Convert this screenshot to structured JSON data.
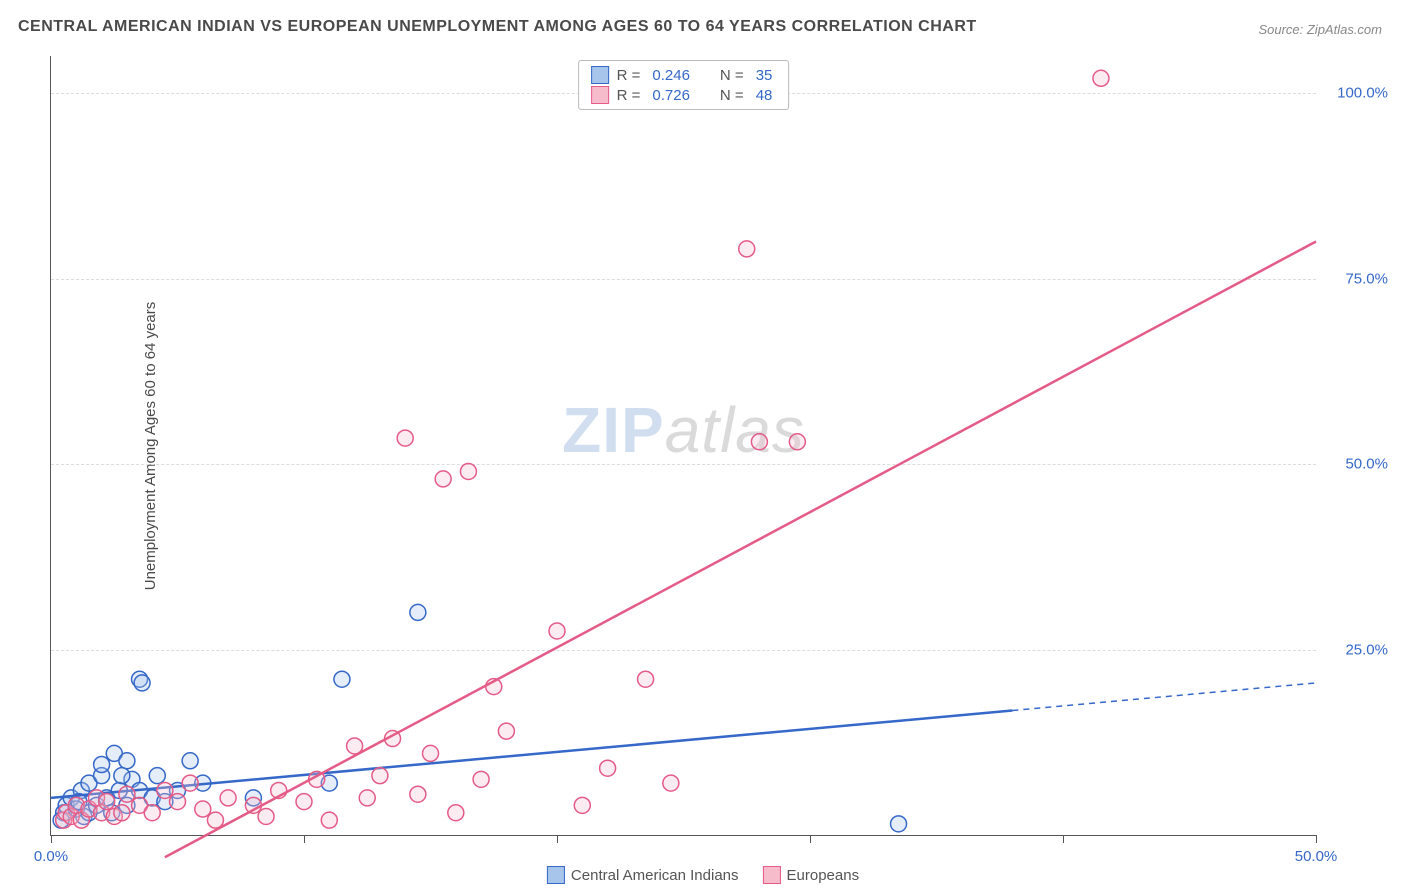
{
  "title": "CENTRAL AMERICAN INDIAN VS EUROPEAN UNEMPLOYMENT AMONG AGES 60 TO 64 YEARS CORRELATION CHART",
  "source_label": "Source: ",
  "source_name": "ZipAtlas.com",
  "y_axis_label": "Unemployment Among Ages 60 to 64 years",
  "watermark_zip": "ZIP",
  "watermark_atlas": "atlas",
  "chart": {
    "type": "scatter",
    "xlim": [
      0,
      50
    ],
    "ylim": [
      0,
      105
    ],
    "background_color": "#ffffff",
    "grid_color": "#dcdcdc",
    "grid_dash": true,
    "axis_color": "#555555",
    "xtick_positions": [
      0,
      10,
      20,
      30,
      40,
      50
    ],
    "xtick_labels_shown": {
      "0": "0.0%",
      "50": "50.0%"
    },
    "ytick_positions": [
      25,
      50,
      75,
      100
    ],
    "ytick_labels": {
      "25": "25.0%",
      "50": "50.0%",
      "75": "75.0%",
      "100": "100.0%"
    },
    "tick_label_color": "#3568c8",
    "tick_label_fontsize": 15,
    "marker_radius": 8,
    "marker_stroke_width": 1.5,
    "marker_fill_opacity": 0.3,
    "series": [
      {
        "id": "cai",
        "name": "Central American Indians",
        "color_stroke": "#3568c8",
        "color_fill": "#a7c4ea",
        "R_label": "R = ",
        "R": "0.246",
        "N_label": "N = ",
        "N": "35",
        "trend_line": {
          "x1": 0,
          "y1": 5,
          "x2": 50,
          "y2": 20.5,
          "solid_until_x": 38,
          "stroke_width": 2.5
        },
        "points": [
          [
            0.5,
            3
          ],
          [
            0.6,
            4
          ],
          [
            0.8,
            5
          ],
          [
            1.0,
            3.5
          ],
          [
            1.2,
            6
          ],
          [
            1.3,
            2.5
          ],
          [
            1.5,
            7
          ],
          [
            1.5,
            3
          ],
          [
            1.8,
            4
          ],
          [
            2.0,
            8
          ],
          [
            2.0,
            9.5
          ],
          [
            2.2,
            5
          ],
          [
            2.4,
            3
          ],
          [
            2.5,
            11
          ],
          [
            2.7,
            6
          ],
          [
            3.0,
            4
          ],
          [
            3.0,
            10
          ],
          [
            3.2,
            7.5
          ],
          [
            3.5,
            21
          ],
          [
            3.5,
            6
          ],
          [
            3.6,
            20.5
          ],
          [
            4.0,
            5
          ],
          [
            4.2,
            8
          ],
          [
            4.5,
            4.5
          ],
          [
            5.0,
            6
          ],
          [
            5.5,
            10
          ],
          [
            6.0,
            7
          ],
          [
            8.0,
            5
          ],
          [
            11.0,
            7
          ],
          [
            11.5,
            21
          ],
          [
            14.5,
            30
          ],
          [
            33.5,
            1.5
          ],
          [
            2.8,
            8
          ],
          [
            1.1,
            4.5
          ],
          [
            0.4,
            2
          ]
        ]
      },
      {
        "id": "eur",
        "name": "Europeans",
        "color_stroke": "#e55b87",
        "color_fill": "#f6bccc",
        "R_label": "R = ",
        "R": "0.726",
        "N_label": "N = ",
        "N": "48",
        "trend_line": {
          "x1": 4.5,
          "y1": -3,
          "x2": 50,
          "y2": 80,
          "solid_until_x": 50,
          "stroke_width": 2.5
        },
        "points": [
          [
            0.5,
            2
          ],
          [
            0.6,
            3
          ],
          [
            0.8,
            2.5
          ],
          [
            1.0,
            4
          ],
          [
            1.2,
            2
          ],
          [
            1.5,
            3.5
          ],
          [
            1.8,
            5
          ],
          [
            2.0,
            3
          ],
          [
            2.2,
            4.5
          ],
          [
            2.5,
            2.5
          ],
          [
            2.8,
            3
          ],
          [
            3.0,
            5.5
          ],
          [
            3.5,
            4
          ],
          [
            4.0,
            3
          ],
          [
            4.5,
            6
          ],
          [
            5.0,
            4.5
          ],
          [
            5.5,
            7
          ],
          [
            6.0,
            3.5
          ],
          [
            7.0,
            5
          ],
          [
            8.0,
            4
          ],
          [
            8.5,
            2.5
          ],
          [
            9.0,
            6
          ],
          [
            10.0,
            4.5
          ],
          [
            10.5,
            7.5
          ],
          [
            11.0,
            2
          ],
          [
            12.0,
            12
          ],
          [
            12.5,
            5
          ],
          [
            13.0,
            8
          ],
          [
            13.5,
            13
          ],
          [
            14.5,
            5.5
          ],
          [
            15.0,
            11
          ],
          [
            15.5,
            48
          ],
          [
            16.0,
            3
          ],
          [
            17.0,
            7.5
          ],
          [
            17.5,
            20
          ],
          [
            18.0,
            14
          ],
          [
            20.0,
            27.5
          ],
          [
            21.0,
            4
          ],
          [
            22.0,
            9
          ],
          [
            23.5,
            21
          ],
          [
            24.5,
            7
          ],
          [
            27.5,
            79
          ],
          [
            16.5,
            49
          ],
          [
            28.0,
            53
          ],
          [
            29.5,
            53
          ],
          [
            41.5,
            102
          ],
          [
            14.0,
            53.5
          ],
          [
            6.5,
            2
          ]
        ]
      }
    ]
  }
}
